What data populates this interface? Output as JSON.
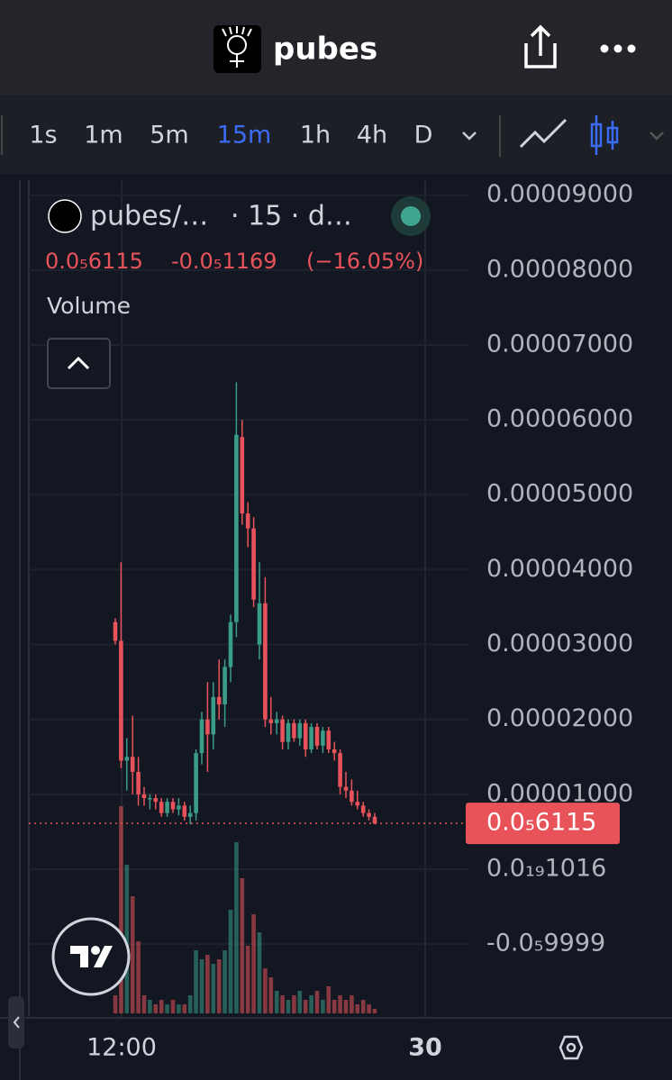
{
  "header": {
    "title": "pubes"
  },
  "toolbar": {
    "intervals": [
      "1s",
      "1m",
      "5m",
      "15m",
      "1h",
      "4h",
      "D"
    ],
    "active": "15m"
  },
  "legend": {
    "symbol": "pubes/…",
    "meta": "· 15 · d…",
    "change": "-0.0₅1169",
    "change_pct": "(−16.05%)",
    "volume": "Volume"
  },
  "x_labels": [
    "12:00",
    "30"
  ],
  "chart_data": {
    "type": "candlestick",
    "up_color": "#3b9c88",
    "down_color": "#e8535a",
    "ylim": [
      -1.96e-05,
      9.2e-05
    ],
    "yticks": [
      {
        "value": 9e-05,
        "label": "0.00009000"
      },
      {
        "value": 8e-05,
        "label": "0.00008000"
      },
      {
        "value": 7e-05,
        "label": "0.00007000"
      },
      {
        "value": 6e-05,
        "label": "0.00006000"
      },
      {
        "value": 5e-05,
        "label": "0.00005000"
      },
      {
        "value": 4e-05,
        "label": "0.00004000"
      },
      {
        "value": 3e-05,
        "label": "0.00003000"
      },
      {
        "value": 2e-05,
        "label": "0.00002000"
      },
      {
        "value": 1e-05,
        "label": "0.00001000"
      },
      {
        "value": 1.016e-20,
        "label": "0.0₁₉1016"
      },
      {
        "value": -9.9999e-06,
        "label": "-0.0₅9999"
      }
    ],
    "last_price": {
      "value": 6.115e-06,
      "label": "0.0₅6115"
    },
    "candles": [
      [
        3.3e-05,
        3.35e-05,
        3e-05,
        3.05e-05
      ],
      [
        3.05e-05,
        4.1e-05,
        1.35e-05,
        1.45e-05
      ],
      [
        1.45e-05,
        1.75e-05,
        1.05e-05,
        1.5e-05
      ],
      [
        1.5e-05,
        2.05e-05,
        1e-05,
        1.3e-05
      ],
      [
        1.3e-05,
        1.5e-05,
        8.5e-06,
        1e-05
      ],
      [
        1e-05,
        1.1e-05,
        8.5e-06,
        9.5e-06
      ],
      [
        9.5e-06,
        1e-05,
        8e-06,
        9.5e-06
      ],
      [
        9.5e-06,
        1e-05,
        8e-06,
        9e-06
      ],
      [
        9e-06,
        9.5e-06,
        7e-06,
        7.5e-06
      ],
      [
        7.5e-06,
        9.5e-06,
        7e-06,
        9e-06
      ],
      [
        9e-06,
        9.5e-06,
        7.5e-06,
        8e-06
      ],
      [
        8e-06,
        9.5e-06,
        7.2e-06,
        8.5e-06
      ],
      [
        8.5e-06,
        9e-06,
        6.5e-06,
        7e-06
      ],
      [
        7e-06,
        8.5e-06,
        6e-06,
        7.5e-06
      ],
      [
        7.5e-06,
        1.6e-05,
        6.5e-06,
        1.55e-05
      ],
      [
        1.55e-05,
        2.1e-05,
        1.4e-05,
        2e-05
      ],
      [
        2e-05,
        2.5e-05,
        1.3e-05,
        1.8e-05
      ],
      [
        1.8e-05,
        2.5e-05,
        1.6e-05,
        2.3e-05
      ],
      [
        2.3e-05,
        2.8e-05,
        2e-05,
        2.2e-05
      ],
      [
        2.2e-05,
        2.8e-05,
        1.9e-05,
        2.7e-05
      ],
      [
        2.7e-05,
        3.4e-05,
        2.5e-05,
        3.3e-05
      ],
      [
        3.3e-05,
        6.5e-05,
        3.1e-05,
        5.8e-05
      ],
      [
        5.77e-05,
        6e-05,
        4.6e-05,
        4.75e-05
      ],
      [
        4.75e-05,
        4.9e-05,
        4.3e-05,
        4.55e-05
      ],
      [
        4.55e-05,
        4.7e-05,
        3.5e-05,
        3.6e-05
      ],
      [
        3e-05,
        4.1e-05,
        2.8e-05,
        3.55e-05
      ],
      [
        3.55e-05,
        3.9e-05,
        1.9e-05,
        2e-05
      ],
      [
        2e-05,
        2.3e-05,
        1.8e-05,
        1.95e-05
      ],
      [
        1.95e-05,
        2.1e-05,
        1.8e-05,
        2e-05
      ],
      [
        2e-05,
        2.05e-05,
        1.6e-05,
        1.7e-05
      ],
      [
        1.7e-05,
        2e-05,
        1.6e-05,
        1.95e-05
      ],
      [
        1.95e-05,
        2e-05,
        1.7e-05,
        1.75e-05
      ],
      [
        1.75e-05,
        2e-05,
        1.65e-05,
        1.95e-05
      ],
      [
        1.95e-05,
        2e-05,
        1.5e-05,
        1.6e-05
      ],
      [
        1.6e-05,
        1.95e-05,
        1.55e-05,
        1.9e-05
      ],
      [
        1.9e-05,
        1.95e-05,
        1.6e-05,
        1.65e-05
      ],
      [
        1.65e-05,
        1.9e-05,
        1.55e-05,
        1.85e-05
      ],
      [
        1.85e-05,
        1.9e-05,
        1.55e-05,
        1.6e-05
      ],
      [
        1.6e-05,
        1.7e-05,
        1.45e-05,
        1.55e-05
      ],
      [
        1.55e-05,
        1.6e-05,
        1e-05,
        1.1e-05
      ],
      [
        1.1e-05,
        1.3e-05,
        9.5e-06,
        1.05e-05
      ],
      [
        1.05e-05,
        1.2e-05,
        8.5e-06,
        9e-06
      ],
      [
        9e-06,
        1.05e-05,
        8e-06,
        8.5e-06
      ],
      [
        8.5e-06,
        9e-06,
        7e-06,
        7.5e-06
      ],
      [
        7.5e-06,
        8e-06,
        6.5e-06,
        7e-06
      ],
      [
        7e-06,
        7.5e-06,
        6e-06,
        6.115e-06
      ]
    ],
    "volumes": [
      20,
      230,
      165,
      130,
      80,
      20,
      15,
      10,
      15,
      10,
      15,
      10,
      10,
      20,
      70,
      60,
      65,
      55,
      60,
      70,
      115,
      190,
      150,
      75,
      110,
      90,
      50,
      40,
      25,
      20,
      15,
      20,
      25,
      15,
      20,
      25,
      15,
      30,
      15,
      20,
      15,
      20,
      10,
      15,
      10,
      5
    ]
  }
}
